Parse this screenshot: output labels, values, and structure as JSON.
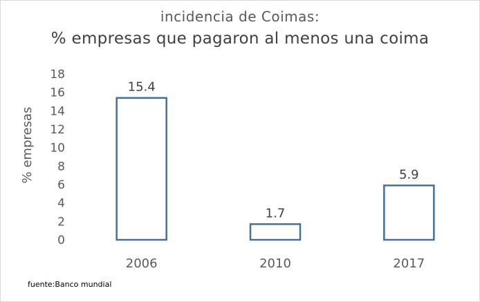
{
  "chart_data": {
    "type": "bar",
    "title": "incidencia  de Coimas:",
    "subtitle": "% empresas que  pagaron al menos una coima",
    "xlabel": "",
    "ylabel": "% empresas",
    "categories": [
      "2006",
      "2010",
      "2017"
    ],
    "values": [
      15.4,
      1.7,
      5.9
    ],
    "data_labels": [
      "15.4",
      "1.7",
      "5.9"
    ],
    "ylim": [
      0,
      18
    ],
    "yticks": [
      0,
      2,
      4,
      6,
      8,
      10,
      12,
      14,
      16,
      18
    ],
    "grid": false,
    "legend": "none",
    "bar_style": "outline",
    "bar_color": "#41719c"
  },
  "source_note": "fuente:Banco mundial"
}
